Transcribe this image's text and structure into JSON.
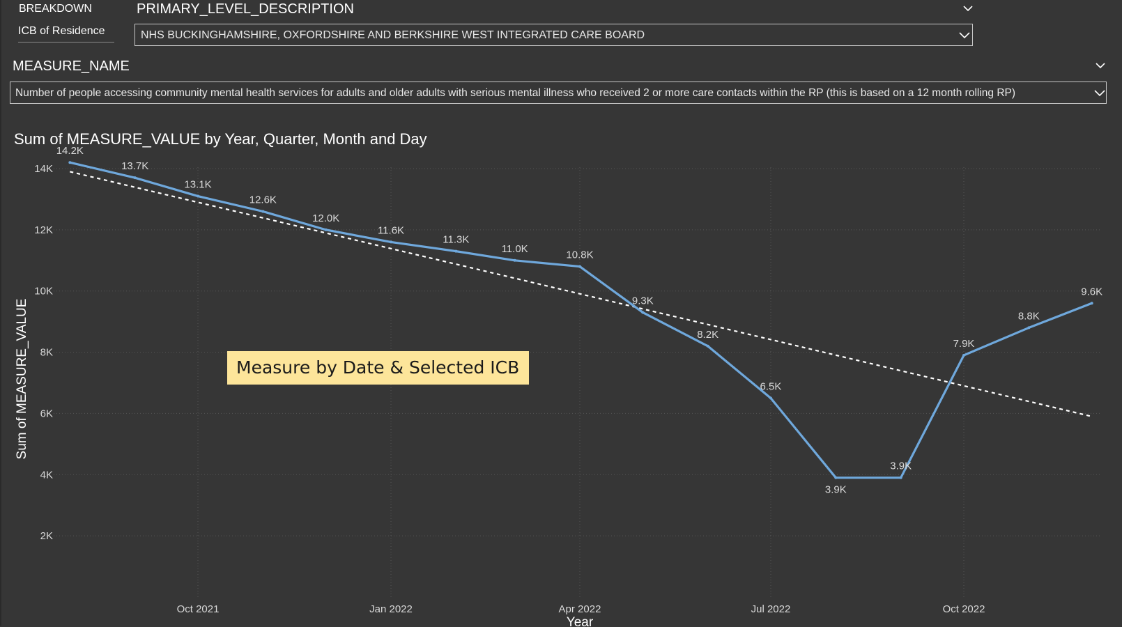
{
  "filters": {
    "breakdown_label": "BREAKDOWN",
    "breakdown_value": "PRIMARY_LEVEL_DESCRIPTION",
    "icb_label": "ICB of Residence",
    "icb_value": "NHS BUCKINGHAMSHIRE, OXFORDSHIRE AND BERKSHIRE WEST INTEGRATED CARE BOARD",
    "measure_label": "MEASURE_NAME",
    "measure_value": "Number of people accessing community mental health services for adults and older adults with serious mental illness who received 2 or more care contacts within the RP (this is based on a 12 month rolling RP)"
  },
  "overlay": {
    "text": "Measure by Date & Selected ICB"
  },
  "colors": {
    "background": "#363636",
    "line": "#6fa8dc",
    "trend": "#ffffff",
    "label": "#d9d9d9",
    "grid": "#555555",
    "overlay_bg": "#fde59a"
  },
  "chart_data": {
    "type": "line",
    "title": "Sum of MEASURE_VALUE by Year, Quarter, Month and Day",
    "xlabel": "Year",
    "ylabel": "Sum of MEASURE_VALUE",
    "ylim": [
      0,
      14500
    ],
    "y_ticks": [
      2000,
      4000,
      6000,
      8000,
      10000,
      12000,
      14000
    ],
    "y_tick_labels": [
      "2K",
      "4K",
      "6K",
      "8K",
      "10K",
      "12K",
      "14K"
    ],
    "x_ticks": [
      "2021-10-01",
      "2022-01-01",
      "2022-04-01",
      "2022-07-01",
      "2022-10-01"
    ],
    "x_tick_labels": [
      "Oct 2021",
      "Jan 2022",
      "Apr 2022",
      "Jul 2022",
      "Oct 2022"
    ],
    "x_range": [
      "2021-07-20",
      "2022-12-25"
    ],
    "grid": true,
    "series": [
      {
        "x": [
          "2021-08-01",
          "2021-09-01",
          "2021-10-01",
          "2021-11-01",
          "2021-12-01",
          "2022-01-01",
          "2022-02-01",
          "2022-03-01",
          "2022-04-01",
          "2022-05-01",
          "2022-06-01",
          "2022-07-01",
          "2022-08-01",
          "2022-09-01",
          "2022-10-01",
          "2022-11-01",
          "2022-12-01"
        ],
        "values": [
          14200,
          13700,
          13100,
          12600,
          12000,
          11600,
          11300,
          11000,
          10800,
          9300,
          8200,
          6500,
          3900,
          3900,
          7900,
          8800,
          9600
        ],
        "labels": [
          "14.2K",
          "13.7K",
          "13.1K",
          "12.6K",
          "12.0K",
          "11.6K",
          "11.3K",
          "11.0K",
          "10.8K",
          "9.3K",
          "8.2K",
          "6.5K",
          "3.9K",
          "3.9K",
          "7.9K",
          "8.8K",
          "9.6K"
        ]
      }
    ],
    "trendline": {
      "style": "dashed",
      "x": [
        "2021-08-01",
        "2022-12-01"
      ],
      "values": [
        13900,
        5900
      ]
    }
  }
}
